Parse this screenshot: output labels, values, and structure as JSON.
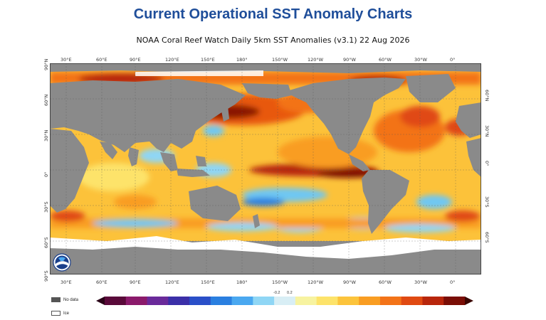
{
  "title": "Current Operational SST Anomaly Charts",
  "subtitle": "NOAA Coral Reef Watch Daily 5km SST Anomalies  (v3.1)   22 Aug 2026",
  "lon_labels": [
    "30°E",
    "60°E",
    "90°E",
    "120°E",
    "150°E",
    "180°",
    "150°W",
    "120°W",
    "90°W",
    "60°W",
    "30°W",
    "0°"
  ],
  "lat_labels_left": [
    "90°N",
    "60°N",
    "30°N",
    "0°",
    "30°S",
    "60°S",
    "90°S"
  ],
  "lat_labels_right": [
    "60°N",
    "30°N",
    "0°",
    "30°S",
    "60°S"
  ],
  "legend": {
    "no_data": "No data",
    "ice": "Ice",
    "no_data_color": "#555555",
    "ice_color": "#ffffff"
  },
  "colorbar": {
    "ticks": [
      "-0.2",
      "0.2"
    ],
    "colors": [
      "#5a0a3a",
      "#8b1a6b",
      "#6a2a9a",
      "#3b2fa8",
      "#2a4fc8",
      "#2a7fe0",
      "#4aa8f0",
      "#8fd6f5",
      "#d8eef5",
      "#f7f3a0",
      "#fde36a",
      "#fcc43c",
      "#f99d22",
      "#f37318",
      "#e04a12",
      "#b8260c",
      "#7a0e06"
    ]
  },
  "logo": "NOAA",
  "colors": {
    "title": "#1f4e9a",
    "land": "#8a8a8a",
    "ocean_base": "#fcc23a",
    "warm": "#e8590f",
    "hot": "#8a1406",
    "cool": "#6fc7f2",
    "cold": "#2a7fe0"
  }
}
